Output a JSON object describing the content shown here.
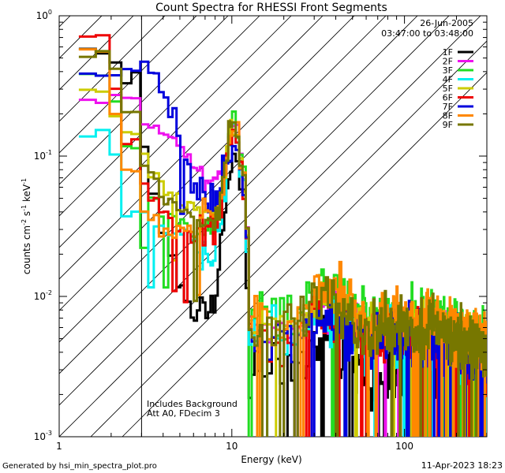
{
  "chart_data": {
    "type": "line",
    "title": "Count Spectra for RHESSI Front Segments",
    "xlabel": "Energy (keV)",
    "ylabel_parts": {
      "a": "counts cm",
      "b": "-2",
      "c": " s",
      "d": "-1",
      "e": " keV",
      "f": "-1"
    },
    "xscale": "log",
    "yscale": "log",
    "xlim": [
      1,
      300
    ],
    "ylim": [
      0.001,
      1
    ],
    "x_ticks": [
      {
        "v": 1,
        "label": "1"
      },
      {
        "v": 10,
        "label": "10"
      },
      {
        "v": 100,
        "label": "100"
      }
    ],
    "y_ticks": [
      {
        "v": 1,
        "base": "10",
        "exp": "0"
      },
      {
        "v": 0.1,
        "base": "10",
        "exp": "-1"
      },
      {
        "v": 0.01,
        "base": "10",
        "exp": "-2"
      },
      {
        "v": 0.001,
        "base": "10",
        "exp": "-3"
      }
    ],
    "date": "26-Jun-2005",
    "time_range": "03:47:00 to 03:48:00",
    "annotation_lines": [
      "Includes Background",
      "Att A0, FDecim 3"
    ],
    "hatched_region_xmax_kev": 3,
    "series": [
      {
        "name": "1F",
        "color": "#000000",
        "seed": 3,
        "low": [
          0.55,
          0.45,
          0.35,
          0.13,
          0.055,
          0.028,
          0.02,
          0.012,
          0.009,
          0.007,
          0.008
        ],
        "spike": 0.1,
        "high": 0.003,
        "noise": 1.0
      },
      {
        "name": "2F",
        "color": "#ee11ee",
        "seed": 7,
        "low": [
          0.24,
          0.26,
          0.26,
          0.18,
          0.16,
          0.15,
          0.13,
          0.12,
          0.1,
          0.08,
          0.07
        ],
        "spike": 0.16,
        "high": 0.006,
        "noise": 0.6
      },
      {
        "name": "3F",
        "color": "#22dd22",
        "seed": 11,
        "low": [
          0.4,
          0.25,
          0.12,
          0.07,
          0.05,
          0.04,
          0.04,
          0.035,
          0.03,
          0.025,
          0.03
        ],
        "spike": 0.17,
        "high": 0.007,
        "noise": 0.7
      },
      {
        "name": "4F",
        "color": "#00f0f0",
        "seed": 13,
        "low": [
          0.15,
          0.1,
          0.04,
          0.04,
          0.035,
          0.03,
          0.025,
          0.03,
          0.03,
          0.025,
          0.02
        ],
        "spike": 0.15,
        "high": 0.005,
        "noise": 0.8
      },
      {
        "name": "5F",
        "color": "#cccc00",
        "seed": 17,
        "low": [
          0.3,
          0.2,
          0.15,
          0.1,
          0.08,
          0.06,
          0.055,
          0.05,
          0.045,
          0.045,
          0.04
        ],
        "spike": 0.15,
        "high": 0.006,
        "noise": 0.6
      },
      {
        "name": "6F",
        "color": "#ee0000",
        "seed": 19,
        "low": [
          0.75,
          0.3,
          0.13,
          0.06,
          0.05,
          0.04,
          0.035,
          0.03,
          0.03,
          0.025,
          0.03
        ],
        "spike": 0.15,
        "high": 0.005,
        "noise": 0.7
      },
      {
        "name": "7F",
        "color": "#0000dd",
        "seed": 23,
        "low": [
          0.38,
          0.4,
          0.42,
          0.46,
          0.4,
          0.3,
          0.2,
          0.13,
          0.09,
          0.06,
          0.05
        ],
        "spike": 0.14,
        "high": 0.005,
        "noise": 0.8
      },
      {
        "name": "8F",
        "color": "#ff8800",
        "seed": 29,
        "low": [
          0.55,
          0.2,
          0.08,
          0.04,
          0.035,
          0.03,
          0.028,
          0.03,
          0.03,
          0.03,
          0.035
        ],
        "spike": 0.16,
        "high": 0.007,
        "noise": 0.7
      },
      {
        "name": "9F",
        "color": "#777700",
        "seed": 31,
        "low": [
          0.55,
          0.4,
          0.2,
          0.09,
          0.07,
          0.05,
          0.045,
          0.04,
          0.04,
          0.035,
          0.035
        ],
        "spike": 0.17,
        "high": 0.006,
        "noise": 0.7
      }
    ]
  },
  "footer": {
    "generated_by": "Generated by hsi_min_spectra_plot.pro",
    "timestamp": "11-Apr-2023 18:23"
  }
}
